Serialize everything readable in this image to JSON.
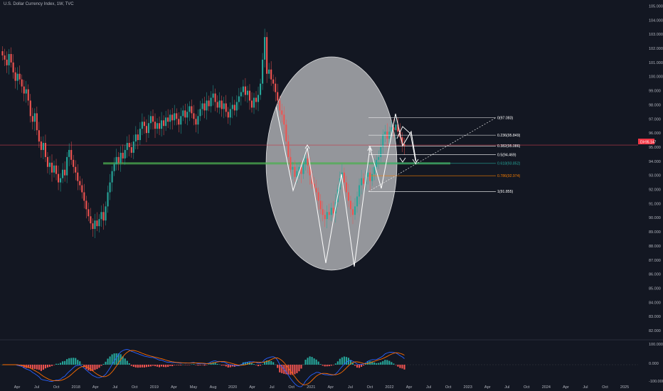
{
  "header": {
    "title": "U.S. Dollar Currency Index, 1W, TVC"
  },
  "price_badge": {
    "symbol": "DXY",
    "value": "95.147"
  },
  "chart_data": {
    "type": "candlestick",
    "title": "U.S. Dollar Currency Index, 1W, TVC",
    "y_axis_labels": [
      "105.000",
      "104.000",
      "103.000",
      "102.000",
      "101.000",
      "100.000",
      "99.000",
      "98.000",
      "97.000",
      "96.000",
      "95.000",
      "94.000",
      "93.000",
      "92.000",
      "91.000",
      "90.000",
      "89.000",
      "88.000",
      "87.000",
      "86.000",
      "85.000",
      "84.000",
      "83.000",
      "82.000"
    ],
    "ylim": [
      81.3,
      105.3
    ],
    "x_axis_labels": [
      "Apr",
      "Jul",
      "Oct",
      "2018",
      "Apr",
      "Jul",
      "Oct",
      "2019",
      "Apr",
      "May",
      "Aug",
      "2020",
      "Apr",
      "Jul",
      "Oct",
      "2021",
      "Apr",
      "Jul",
      "Oct",
      "2022",
      "Apr",
      "Jul",
      "Oct",
      "2023",
      "Apr",
      "Jul",
      "Oct",
      "2024",
      "Apr",
      "Jul",
      "Oct",
      "2025"
    ],
    "last_price": 95.147,
    "fib_levels": [
      {
        "label": "0(97.083)",
        "value": 97.083,
        "color": "#ffffff"
      },
      {
        "label": "0.236(95.849)",
        "value": 95.849,
        "color": "#ffffff"
      },
      {
        "label": "0.382(95.086)",
        "value": 95.086,
        "color": "#ffffff"
      },
      {
        "label": "0.5(94.469)",
        "value": 94.469,
        "color": "#ffffff"
      },
      {
        "label": "0.618(93.852)",
        "value": 93.852,
        "color": "#26a69a"
      },
      {
        "label": "0.786(92.974)",
        "value": 92.974,
        "color": "#f57c00"
      },
      {
        "label": "1(91.855)",
        "value": 91.855,
        "color": "#ffffff"
      }
    ],
    "support_level": 93.85,
    "closes": [
      101.5,
      101.2,
      100.8,
      101.6,
      101.0,
      100.3,
      99.7,
      100.2,
      99.8,
      99.3,
      98.8,
      99.1,
      98.3,
      97.2,
      96.8,
      97.4,
      96.2,
      95.4,
      94.8,
      95.3,
      94.3,
      93.6,
      93.9,
      93.2,
      93.7,
      93.1,
      92.5,
      92.8,
      93.4,
      93.0,
      94.3,
      94.8,
      94.1,
      93.6,
      93.2,
      92.6,
      92.3,
      91.8,
      91.2,
      90.6,
      90.1,
      89.6,
      89.2,
      89.8,
      89.4,
      89.9,
      90.4,
      89.8,
      90.8,
      91.8,
      92.5,
      93.3,
      93.8,
      94.3,
      93.9,
      94.6,
      94.2,
      94.8,
      95.3,
      95.0,
      94.6,
      95.4,
      95.9,
      95.5,
      96.3,
      96.8,
      96.5,
      96.0,
      96.7,
      97.2,
      96.8,
      96.3,
      96.7,
      96.3,
      96.9,
      96.5,
      97.1,
      96.8,
      97.3,
      96.9,
      97.4,
      97.0,
      96.6,
      97.2,
      97.6,
      97.1,
      97.5,
      97.9,
      97.4,
      97.0,
      96.6,
      97.2,
      97.7,
      98.1,
      97.6,
      98.3,
      97.9,
      98.5,
      98.8,
      98.2,
      97.8,
      98.3,
      97.7,
      98.1,
      97.5,
      97.1,
      97.7,
      98.0,
      97.6,
      98.2,
      98.6,
      98.9,
      99.3,
      98.7,
      99.0,
      98.3,
      97.8,
      98.5,
      98.2,
      98.7,
      99.5,
      101.2,
      102.8,
      100.2,
      100.5,
      99.8,
      99.5,
      98.9,
      98.3,
      97.6,
      97.3,
      96.6,
      95.4,
      94.3,
      93.4,
      93.6,
      92.9,
      93.3,
      93.6,
      93.1,
      93.8,
      94.2,
      93.7,
      93.0,
      92.4,
      92.1,
      91.8,
      91.2,
      90.6,
      90.2,
      89.9,
      90.4,
      90.2,
      90.7,
      90.3,
      91.1,
      92.0,
      92.8,
      93.2,
      92.5,
      91.8,
      91.2,
      90.6,
      90.2,
      90.8,
      91.5,
      92.3,
      92.8,
      92.4,
      92.9,
      93.2,
      92.6,
      93.1,
      93.6,
      94.1,
      94.3,
      95.0,
      95.9,
      96.1,
      95.6,
      96.1,
      96.4,
      96.2,
      96.6,
      96.1,
      95.7,
      95.2,
      95.1
    ]
  },
  "macd_axis": {
    "labels": [
      "100.000",
      "0.000",
      "-100.000"
    ]
  }
}
